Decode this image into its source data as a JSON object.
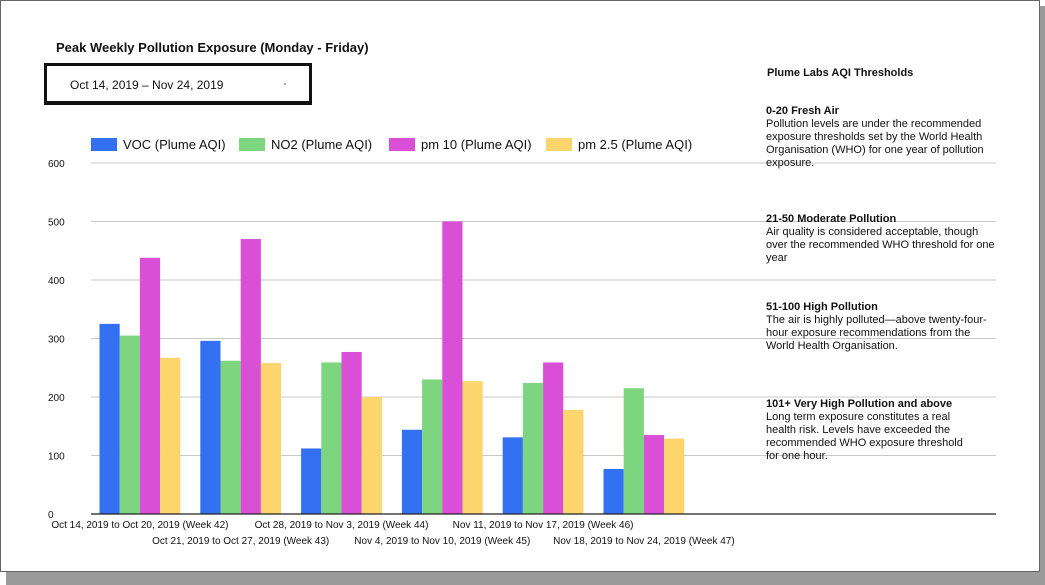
{
  "title": "Peak Weekly Pollution Exposure (Monday - Friday)",
  "date_range": "Oct 14, 2019 – Nov 24, 2019",
  "date_dot": "·",
  "chart_data": {
    "type": "bar",
    "categories": [
      "Oct 14, 2019 to Oct 20, 2019 (Week 42)",
      "Oct 21, 2019 to Oct 27, 2019 (Week 43)",
      "Oct 28, 2019 to Nov 3, 2019 (Week 44)",
      "Nov 4, 2019 to Nov 10, 2019 (Week 45)",
      "Nov 11, 2019 to Nov 17, 2019 (Week 46)",
      "Nov 18, 2019 to Nov 24, 2019 (Week 47)"
    ],
    "series": [
      {
        "name": "VOC (Plume AQI)",
        "color": "#3370f2",
        "values": [
          325,
          296,
          112,
          144,
          131,
          77
        ]
      },
      {
        "name": "NO2 (Plume AQI)",
        "color": "#7dd67f",
        "values": [
          305,
          262,
          259,
          230,
          224,
          215
        ]
      },
      {
        "name": "pm 10 (Plume AQI)",
        "color": "#d94fd6",
        "values": [
          438,
          470,
          277,
          500,
          259,
          135
        ]
      },
      {
        "name": "pm 2.5 (Plume AQI)",
        "color": "#fcd56c",
        "values": [
          267,
          258,
          200,
          227,
          178,
          129
        ]
      }
    ],
    "ylim": [
      0,
      600
    ],
    "yticks": [
      0,
      100,
      200,
      300,
      400,
      500,
      600
    ],
    "grid": true,
    "legend": "top"
  },
  "thresholds": {
    "title": "Plume Labs AQI Thresholds",
    "items": [
      {
        "heading": "0-20 Fresh Air",
        "text": "Pollution levels are under the recommended exposure thresholds set by the World Health Organisation (WHO) for one year of pollution exposure."
      },
      {
        "heading": "21-50 Moderate Pollution",
        "text": "Air quality is considered acceptable, though over the recommended WHO threshold for one year"
      },
      {
        "heading": "51-100 High Pollution",
        "text": "The air is highly polluted—above twenty-four-hour exposure recommendations from the World Health Organisation."
      },
      {
        "heading": "101+ Very High Pollution and above",
        "text": "Long term exposure constitutes a real health risk. Levels have exceeded the recommended WHO exposure threshold for one hour."
      }
    ]
  }
}
